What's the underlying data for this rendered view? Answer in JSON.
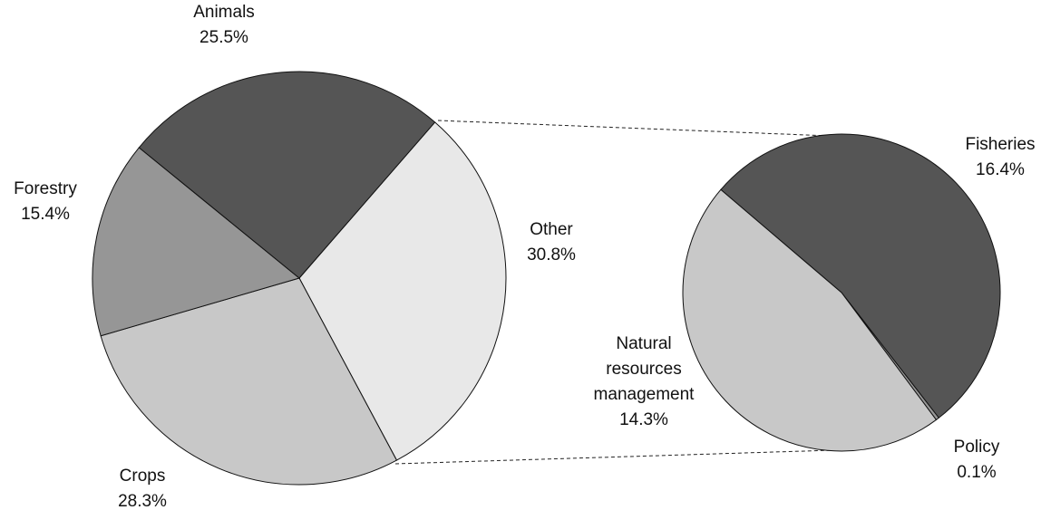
{
  "chart_data": [
    {
      "type": "pie",
      "categories": [
        "Other",
        "Crops",
        "Forestry",
        "Animals"
      ],
      "values": [
        30.8,
        28.3,
        15.4,
        25.5
      ],
      "value_labels": [
        "30.8%",
        "28.3%",
        "15.4%",
        "25.5%"
      ],
      "colors": [
        "#e8e8e8",
        "#c8c8c8",
        "#969696",
        "#555555"
      ]
    },
    {
      "type": "pie",
      "categories": [
        "Fisheries",
        "Policy",
        "Natural resources management"
      ],
      "values": [
        16.4,
        0.1,
        14.3
      ],
      "value_labels": [
        "16.4%",
        "0.1%",
        "14.3%"
      ],
      "colors": [
        "#555555",
        "#969696",
        "#c8c8c8"
      ]
    }
  ]
}
